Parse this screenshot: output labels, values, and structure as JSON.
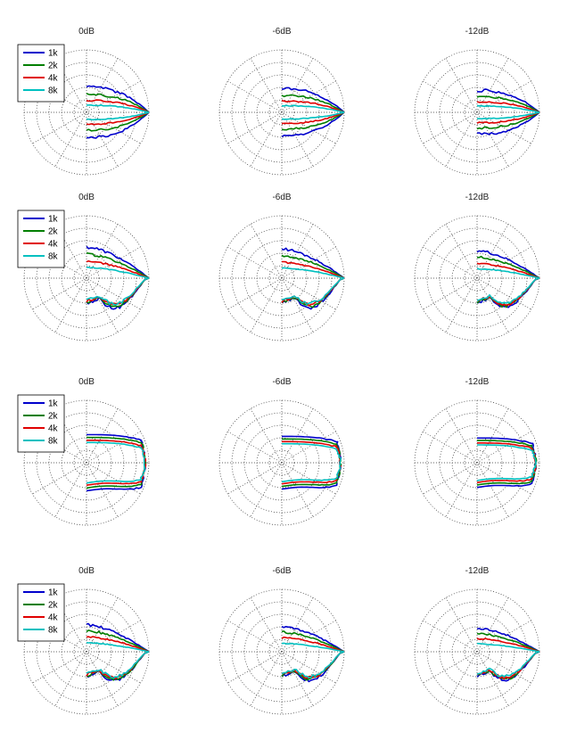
{
  "figure": {
    "layout": "4 rows x 3 columns of polar plots"
  },
  "chart_data": {
    "type": "polar",
    "grid": true,
    "grid_style": "dotted",
    "rings": 5,
    "spokes_deg": 30,
    "legend": {
      "placement": "top-left of first plot in each row",
      "entries": [
        "1k",
        "2k",
        "4k",
        "8k"
      ]
    },
    "series_colors": {
      "1k": "#0000cc",
      "2k": "#007f00",
      "4k": "#e00000",
      "8k": "#00c0c0"
    },
    "column_titles": [
      "0dB",
      "-6dB",
      "-12dB"
    ],
    "rows": [
      {
        "titles": [
          "0dB",
          "-6dB",
          "-12dB"
        ],
        "pattern": "narrow-forward",
        "half_width_at_rim": {
          "1k": 0.42,
          "2k": 0.3,
          "4k": 0.2,
          "8k": 0.12
        },
        "legend_entries": [
          "1k",
          "2k",
          "4k",
          "8k"
        ]
      },
      {
        "titles": [
          "0dB",
          "-6dB",
          "-12dB"
        ],
        "pattern": "forward-with-lower-lobe",
        "half_width_at_rim": {
          "1k": 0.52,
          "2k": 0.4,
          "4k": 0.28,
          "8k": 0.18
        },
        "legend_entries": [
          "1k",
          "2k",
          "4k",
          "8k"
        ]
      },
      {
        "titles": [
          "0dB",
          "-6dB",
          "-12dB"
        ],
        "pattern": "wide-box",
        "half_width_at_rim": {
          "1k": 0.5,
          "2k": 0.45,
          "4k": 0.4,
          "8k": 0.36
        },
        "legend_entries": [
          "1k",
          "2k",
          "4k",
          "8k"
        ]
      },
      {
        "titles": [
          "0dB",
          "-6dB",
          "-12dB"
        ],
        "pattern": "forward-with-lower-lobe",
        "half_width_at_rim": {
          "1k": 0.45,
          "2k": 0.35,
          "4k": 0.25,
          "8k": 0.15
        },
        "legend_entries": [
          "1k",
          "2k",
          "4k",
          "8k"
        ]
      }
    ]
  }
}
